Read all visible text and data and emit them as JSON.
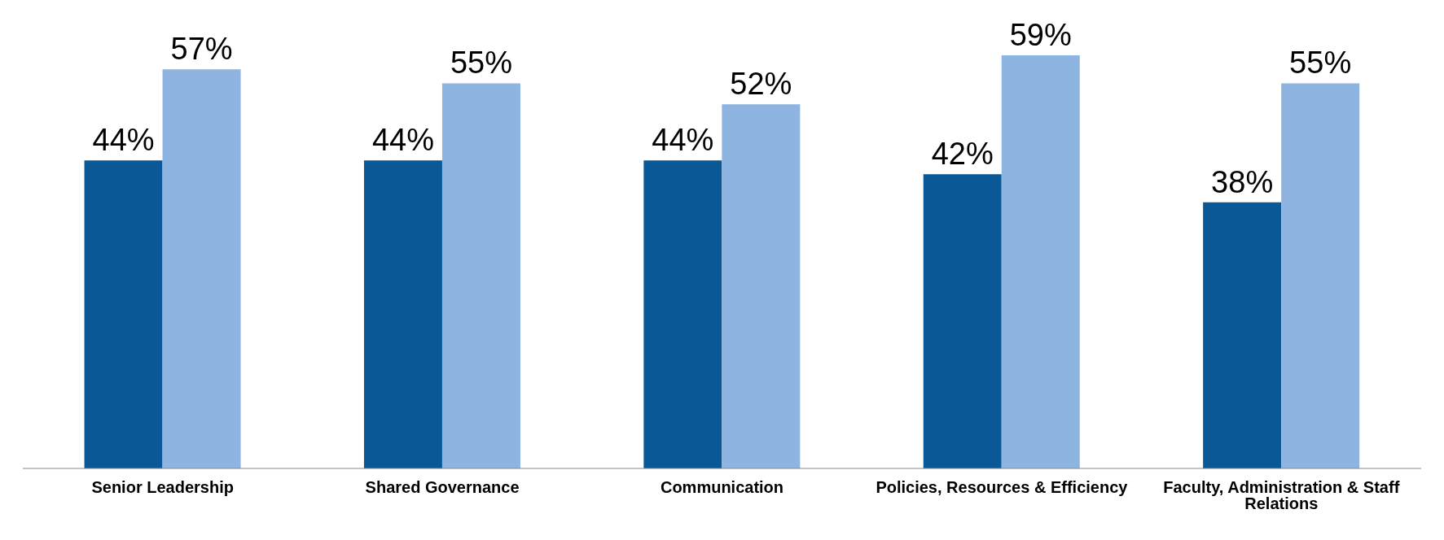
{
  "chart_data": {
    "type": "bar",
    "categories": [
      "Senior Leadership",
      "Shared Governance",
      "Communication",
      "Policies, Resources & Efficiency",
      "Faculty, Administration & Staff Relations"
    ],
    "series": [
      {
        "color": "#0b5896",
        "values": [
          44,
          44,
          44,
          42,
          38
        ],
        "value_labels": [
          "44%",
          "44%",
          "44%",
          "42%",
          "38%"
        ]
      },
      {
        "color": "#8eb4e2",
        "values": [
          57,
          55,
          52,
          59,
          55
        ],
        "value_labels": [
          "57%",
          "55%",
          "52%",
          "59%",
          "55%"
        ]
      }
    ],
    "tick_labels": "x"
  }
}
